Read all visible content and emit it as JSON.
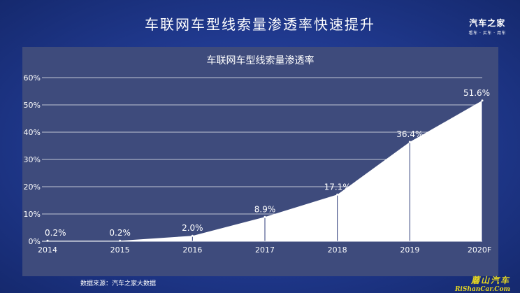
{
  "header": {
    "title": "车联网车型线索量渗透率快速提升",
    "logo_brand": "汽车之家",
    "logo_tagline": "看车 · 买车 · 用车"
  },
  "footer": {
    "source": "数据来源：汽车之家大数据",
    "watermark_line1": "蘑山汽车",
    "watermark_line2": "RiShanCar.Com"
  },
  "colors": {
    "background": "#223c94",
    "panel": "#3e4b7c",
    "area_fill": "#ffffff",
    "gridline": "#ffffff"
  },
  "chart_data": {
    "type": "area",
    "title": "车联网车型线索量渗透率",
    "xlabel": "",
    "ylabel": "",
    "categories": [
      "2014",
      "2015",
      "2016",
      "2017",
      "2018",
      "2019",
      "2020F"
    ],
    "values": [
      0.2,
      0.2,
      2.0,
      8.9,
      17.1,
      36.4,
      51.6
    ],
    "data_labels": [
      "0.2%",
      "0.2%",
      "2.0%",
      "8.9%",
      "17.1%",
      "36.4%",
      "51.6%"
    ],
    "y_ticks": [
      "0%",
      "10%",
      "20%",
      "30%",
      "40%",
      "50%",
      "60%"
    ],
    "ylim": [
      0,
      60
    ],
    "grid": true,
    "legend": "none"
  }
}
